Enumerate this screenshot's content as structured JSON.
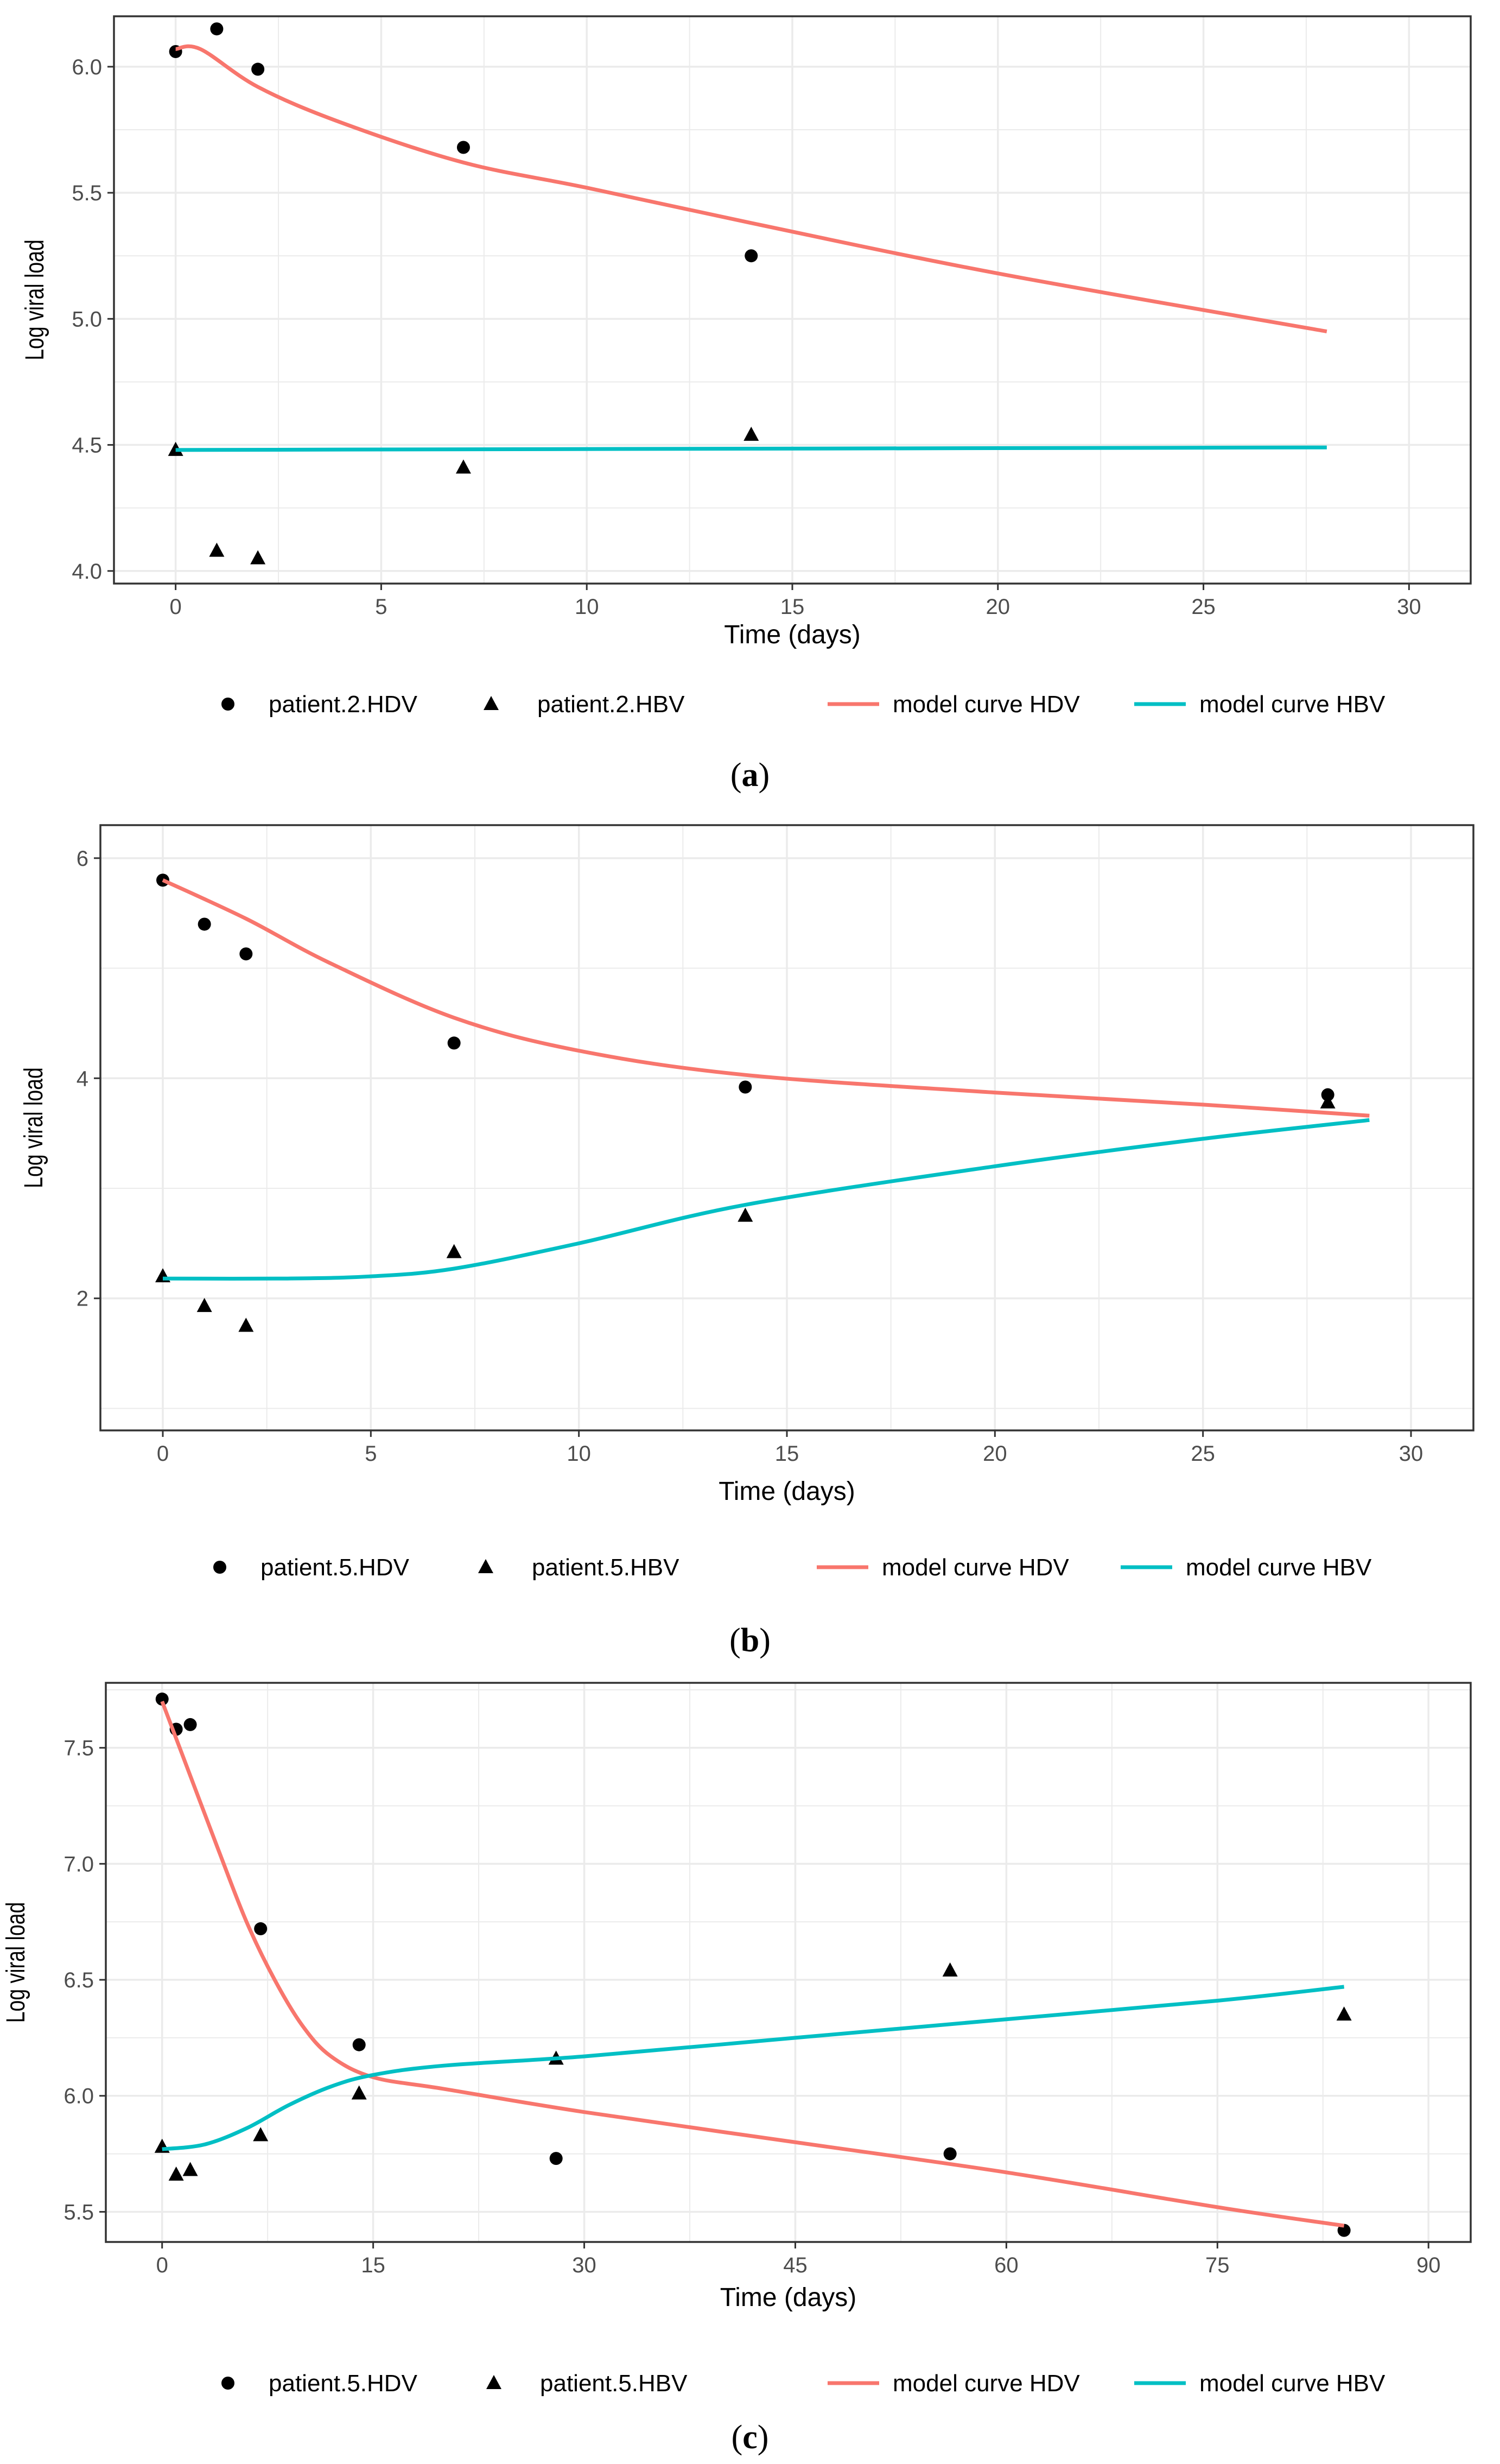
{
  "colors": {
    "hdv": "#F8766D",
    "hbv": "#00BFC4",
    "grid": "#EBEBEB",
    "frame": "#333333",
    "points": "#000000"
  },
  "chart_data": [
    {
      "type": "scatter",
      "panel": "a",
      "caption": {
        "open": "(",
        "letter": "a",
        "close": ")"
      },
      "xlabel": "Time (days)",
      "ylabel": "Log viral load",
      "xlim": [
        -1.5,
        31.5
      ],
      "ylim": [
        3.95,
        6.2
      ],
      "xticks": [
        0,
        5,
        10,
        15,
        20,
        25,
        30
      ],
      "yticks": [
        4.0,
        4.5,
        5.0,
        5.5,
        6.0
      ],
      "yticklabels": [
        "4.0",
        "4.5",
        "5.0",
        "5.5",
        "6.0"
      ],
      "series": [
        {
          "name": "patient.2.HDV",
          "kind": "points",
          "marker": "circle",
          "x": [
            0,
            1,
            2,
            7,
            14
          ],
          "y": [
            6.06,
            6.15,
            5.99,
            5.68,
            5.25
          ]
        },
        {
          "name": "patient.2.HBV",
          "kind": "points",
          "marker": "triangle",
          "x": [
            0,
            1,
            2,
            7,
            14
          ],
          "y": [
            4.48,
            4.08,
            4.05,
            4.41,
            4.54
          ]
        },
        {
          "name": "model curve HDV",
          "kind": "line",
          "color": "hdv",
          "x": [
            0,
            0.6,
            2,
            4,
            7,
            10,
            14,
            20,
            28
          ],
          "y": [
            6.07,
            6.07,
            5.92,
            5.78,
            5.62,
            5.52,
            5.38,
            5.18,
            4.95
          ]
        },
        {
          "name": "model curve HBV",
          "kind": "line",
          "color": "hbv",
          "x": [
            0,
            28
          ],
          "y": [
            4.48,
            4.49
          ]
        }
      ],
      "legend": [
        {
          "label": "patient.2.HDV",
          "marker": "circle"
        },
        {
          "label": "patient.2.HBV",
          "marker": "triangle"
        },
        {
          "label": "model curve HDV",
          "marker": "line",
          "color": "hdv"
        },
        {
          "label": "model curve HBV",
          "marker": "line",
          "color": "hbv"
        }
      ]
    },
    {
      "type": "scatter",
      "panel": "b",
      "caption": {
        "open": "(",
        "letter": "b",
        "close": ")"
      },
      "xlabel": "Time (days)",
      "ylabel": "Log viral load",
      "xlim": [
        -1.5,
        31.5
      ],
      "ylim": [
        0.8,
        6.3
      ],
      "xticks": [
        0,
        5,
        10,
        15,
        20,
        25,
        30
      ],
      "yticks": [
        2,
        4,
        6
      ],
      "yticklabels": [
        "2",
        "4",
        "6"
      ],
      "series": [
        {
          "name": "patient.5.HDV",
          "kind": "points",
          "marker": "circle",
          "x": [
            0,
            1,
            2,
            7,
            14,
            28
          ],
          "y": [
            5.8,
            5.4,
            5.13,
            4.32,
            3.92,
            3.85
          ]
        },
        {
          "name": "patient.5.HBV",
          "kind": "points",
          "marker": "triangle",
          "x": [
            0,
            1,
            2,
            7,
            14,
            28
          ],
          "y": [
            2.2,
            1.93,
            1.75,
            2.42,
            2.75,
            3.78
          ]
        },
        {
          "name": "model curve HDV",
          "kind": "line",
          "color": "hdv",
          "x": [
            0,
            2,
            4,
            7,
            10,
            14,
            20,
            25,
            29
          ],
          "y": [
            5.8,
            5.45,
            5.05,
            4.55,
            4.25,
            4.03,
            3.87,
            3.76,
            3.66
          ]
        },
        {
          "name": "model curve HBV",
          "kind": "line",
          "color": "hbv",
          "x": [
            0,
            3,
            5,
            7,
            10,
            14,
            20,
            25,
            29
          ],
          "y": [
            2.18,
            2.18,
            2.2,
            2.27,
            2.5,
            2.85,
            3.2,
            3.45,
            3.62
          ]
        }
      ],
      "legend": [
        {
          "label": "patient.5.HDV",
          "marker": "circle"
        },
        {
          "label": "patient.5.HBV",
          "marker": "triangle"
        },
        {
          "label": "model curve HDV",
          "marker": "line",
          "color": "hdv"
        },
        {
          "label": "model curve HBV",
          "marker": "line",
          "color": "hbv"
        }
      ]
    },
    {
      "type": "scatter",
      "panel": "c",
      "caption": {
        "open": "(",
        "letter": "c",
        "close": ")"
      },
      "xlabel": "Time (days)",
      "ylabel": "Log viral load",
      "xlim": [
        -4,
        93
      ],
      "ylim": [
        5.37,
        7.78
      ],
      "xticks": [
        0,
        15,
        30,
        45,
        60,
        75,
        90
      ],
      "yticks": [
        5.5,
        6.0,
        6.5,
        7.0,
        7.5
      ],
      "yticklabels": [
        "5.5",
        "6.0",
        "6.5",
        "7.0",
        "7.5"
      ],
      "series": [
        {
          "name": "patient.5.HDV",
          "kind": "points",
          "marker": "circle",
          "x": [
            0,
            1,
            2,
            7,
            14,
            28,
            56,
            84
          ],
          "y": [
            7.71,
            7.58,
            7.6,
            6.72,
            6.22,
            5.73,
            5.75,
            5.42
          ]
        },
        {
          "name": "patient.5.HBV",
          "kind": "points",
          "marker": "triangle",
          "x": [
            0,
            1,
            2,
            7,
            14,
            28,
            56,
            84
          ],
          "y": [
            5.78,
            5.66,
            5.68,
            5.83,
            6.01,
            6.16,
            6.54,
            6.35
          ]
        },
        {
          "name": "model curve HDV",
          "kind": "line",
          "color": "hdv",
          "x": [
            0,
            2,
            4,
            6,
            8,
            10,
            12,
            15,
            20,
            30,
            45,
            60,
            75,
            84
          ],
          "y": [
            7.7,
            7.38,
            7.06,
            6.75,
            6.5,
            6.3,
            6.17,
            6.08,
            6.03,
            5.93,
            5.8,
            5.67,
            5.52,
            5.44
          ]
        },
        {
          "name": "model curve HBV",
          "kind": "line",
          "color": "hbv",
          "x": [
            0,
            3,
            6,
            9,
            12,
            15,
            20,
            30,
            45,
            60,
            75,
            84
          ],
          "y": [
            5.77,
            5.79,
            5.86,
            5.96,
            6.04,
            6.09,
            6.13,
            6.17,
            6.25,
            6.33,
            6.41,
            6.47
          ]
        }
      ],
      "legend": [
        {
          "label": "patient.5.HDV",
          "marker": "circle"
        },
        {
          "label": "patient.5.HBV",
          "marker": "triangle"
        },
        {
          "label": "model curve HDV",
          "marker": "line",
          "color": "hdv"
        },
        {
          "label": "model curve HBV",
          "marker": "line",
          "color": "hbv"
        }
      ]
    }
  ]
}
